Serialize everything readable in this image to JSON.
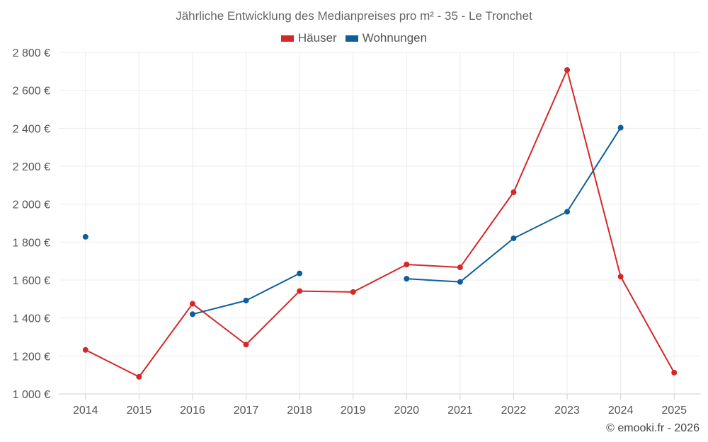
{
  "chart_data": {
    "type": "line",
    "title": "Jährliche Entwicklung des Medianpreises pro m² - 35 - Le Tronchet",
    "categories": [
      "2014",
      "2015",
      "2016",
      "2017",
      "2018",
      "2019",
      "2020",
      "2021",
      "2022",
      "2023",
      "2024",
      "2025"
    ],
    "ylim": [
      1000,
      2800
    ],
    "yticks": [
      1000,
      1200,
      1400,
      1600,
      1800,
      2000,
      2200,
      2400,
      2600,
      2800
    ],
    "ytick_labels": [
      "1 000 €",
      "1 200 €",
      "1 400 €",
      "1 600 €",
      "1 800 €",
      "2 000 €",
      "2 200 €",
      "2 400 €",
      "2 600 €",
      "2 800 €"
    ],
    "grid": true,
    "legend_position": "top-center",
    "series": [
      {
        "name": "Häuser",
        "color": "#d62728",
        "values": [
          1232,
          1090,
          1475,
          1260,
          1542,
          1537,
          1682,
          1667,
          2063,
          2707,
          1618,
          1112
        ]
      },
      {
        "name": "Wohnungen",
        "color": "#0e5f99",
        "values": [
          1828,
          null,
          1420,
          1492,
          1635,
          null,
          1607,
          1590,
          1820,
          1960,
          2403,
          null
        ]
      }
    ]
  },
  "credit": "© emooki.fr - 2026"
}
